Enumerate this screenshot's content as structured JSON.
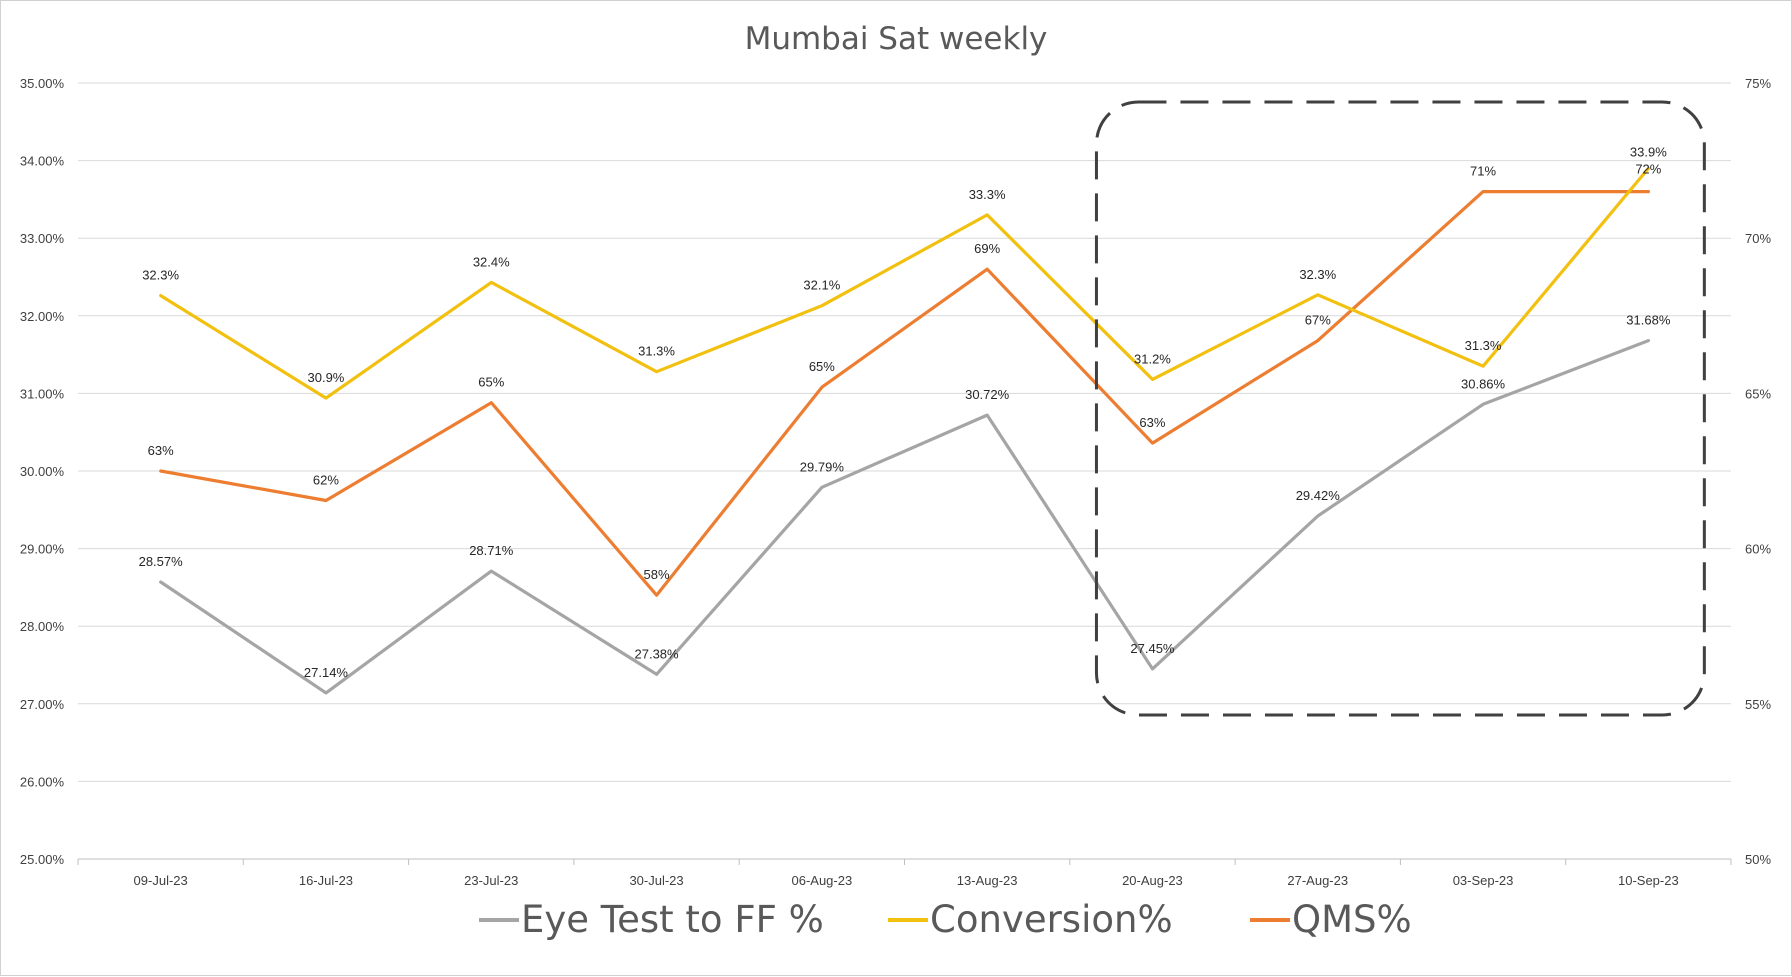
{
  "chart_data": {
    "type": "line",
    "title": "Mumbai Sat weekly",
    "categories": [
      "09-Jul-23",
      "16-Jul-23",
      "23-Jul-23",
      "30-Jul-23",
      "06-Aug-23",
      "13-Aug-23",
      "20-Aug-23",
      "27-Aug-23",
      "03-Sep-23",
      "10-Sep-23"
    ],
    "y_left": {
      "min": 25,
      "max": 35,
      "step": 1,
      "ticks": [
        "25.00%",
        "26.00%",
        "27.00%",
        "28.00%",
        "29.00%",
        "30.00%",
        "31.00%",
        "32.00%",
        "33.00%",
        "34.00%",
        "35.00%"
      ]
    },
    "y_right": {
      "min": 50,
      "max": 75,
      "step": 5,
      "ticks": [
        "50%",
        "55%",
        "60%",
        "65%",
        "70%",
        "75%"
      ]
    },
    "grid": true,
    "legend_position": "bottom",
    "highlight_box": {
      "from_category": "20-Aug-23",
      "to_category": "10-Sep-23",
      "style": "dashed"
    },
    "series": [
      {
        "name": "Eye Test to FF %",
        "axis": "left",
        "color": "#a5a5a5",
        "values": [
          28.57,
          27.14,
          28.71,
          27.38,
          29.79,
          30.72,
          27.45,
          29.42,
          30.86,
          31.68
        ],
        "labels": [
          "28.57%",
          "27.14%",
          "28.71%",
          "27.38%",
          "29.79%",
          "30.72%",
          "27.45%",
          "29.42%",
          "30.86%",
          "31.68%"
        ]
      },
      {
        "name": "Conversion%",
        "axis": "left",
        "color": "#f2c00f",
        "values": [
          32.26,
          30.94,
          32.43,
          31.28,
          32.13,
          33.3,
          31.18,
          32.27,
          31.35,
          33.9
        ],
        "labels": [
          "32.3%",
          "30.9%",
          "32.4%",
          "31.3%",
          "32.1%",
          "33.3%",
          "31.2%",
          "32.3%",
          "31.3%",
          "33.9%"
        ]
      },
      {
        "name": "QMS%",
        "axis": "right",
        "color": "#ed7d31",
        "values": [
          62.5,
          61.55,
          64.7,
          58.5,
          65.2,
          69.0,
          63.4,
          66.7,
          71.5,
          71.5
        ],
        "labels": [
          "63%",
          "62%",
          "65%",
          "58%",
          "65%",
          "69%",
          "63%",
          "67%",
          "71%",
          "72%"
        ]
      }
    ]
  }
}
